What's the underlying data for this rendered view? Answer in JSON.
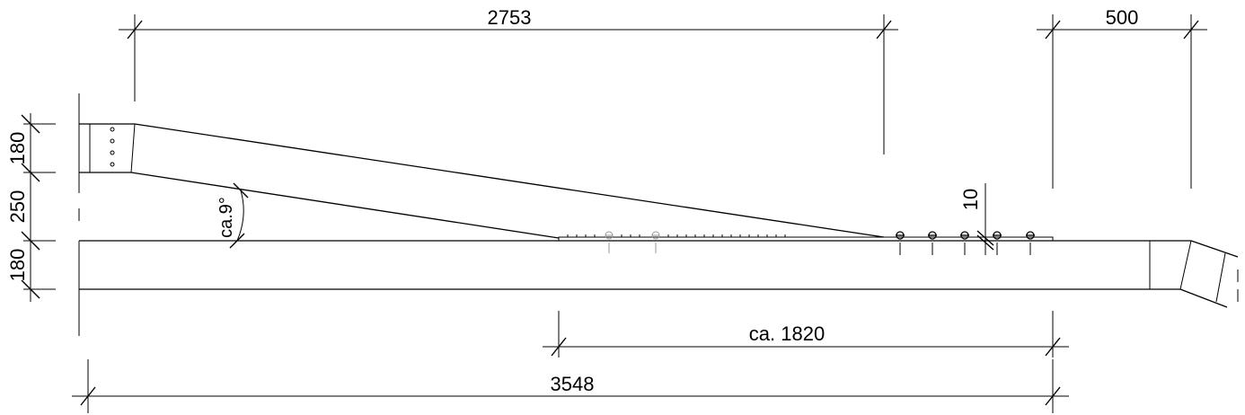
{
  "dimensions": {
    "top_left_span": "2753",
    "top_right_span": "500",
    "left_upper_height": "180",
    "left_middle_height": "250",
    "left_lower_height": "180",
    "plate_thickness": "10",
    "overlap_length": "ca. 1820",
    "overall_length": "3548",
    "angle": "ca.9°"
  },
  "colors": {
    "line": "#000000",
    "bolt_grey": "#999999",
    "background": "#ffffff"
  }
}
